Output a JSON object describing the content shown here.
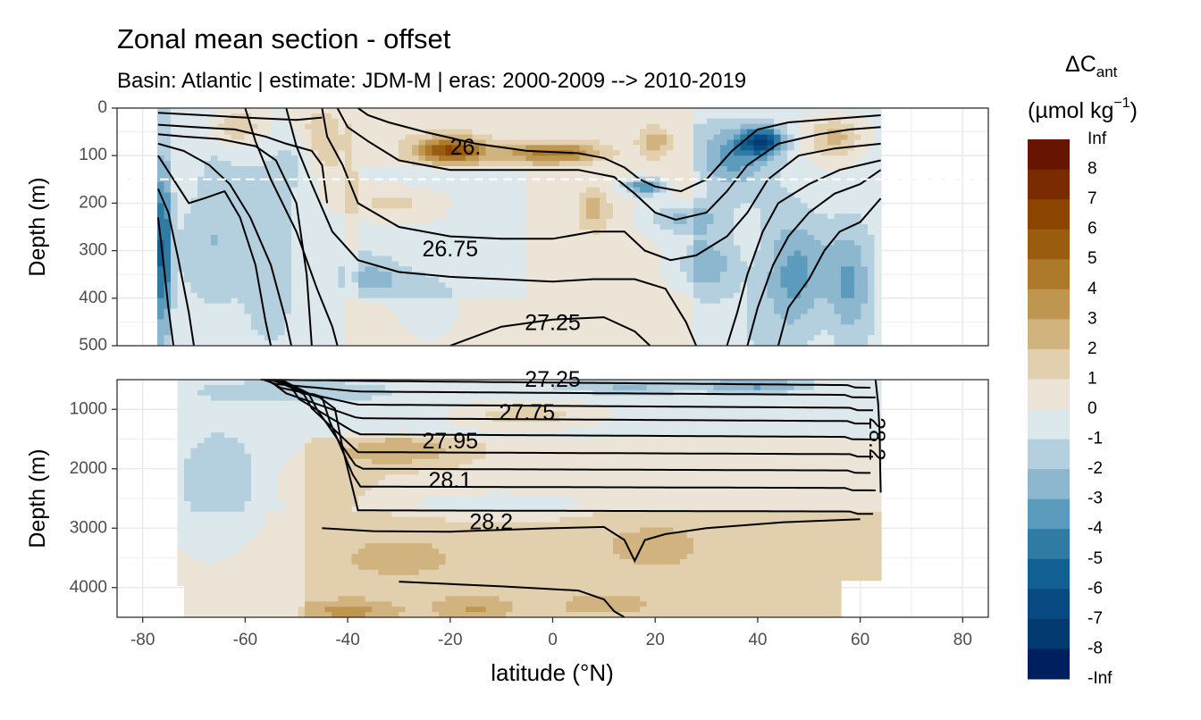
{
  "chart_data": {
    "type": "heatmap",
    "title": "Zonal mean section - offset",
    "subtitle": "Basin: Atlantic | estimate: JDM-M | eras: 2000-2009 --> 2010-2019",
    "xlabel": "latitude (°N)",
    "x_ticks": [
      "-80",
      "-60",
      "-40",
      "-20",
      "0",
      "20",
      "40",
      "60",
      "80"
    ],
    "xlim": [
      -85,
      85
    ],
    "panels": [
      {
        "name": "upper",
        "ylabel": "Depth (m)",
        "ylim": [
          0,
          500
        ],
        "y_ticks": [
          "0",
          "100",
          "200",
          "300",
          "400",
          "500"
        ],
        "reference_line_depth": 150,
        "contour_labels": [
          {
            "text": "26.",
            "lat": -17,
            "depth": 85
          },
          {
            "text": "26.75",
            "lat": -20,
            "depth": 300
          },
          {
            "text": "27.25",
            "lat": 0,
            "depth": 455
          }
        ]
      },
      {
        "name": "lower",
        "ylabel": "Depth (m)",
        "ylim": [
          500,
          4500
        ],
        "y_ticks": [
          "1000",
          "2000",
          "3000",
          "4000"
        ],
        "contour_labels": [
          {
            "text": "27.25",
            "lat": 0,
            "depth": 520
          },
          {
            "text": "27.75",
            "lat": -5,
            "depth": 1080
          },
          {
            "text": "27.95",
            "lat": -20,
            "depth": 1560
          },
          {
            "text": "28.1",
            "lat": -20,
            "depth": 2220
          },
          {
            "text": "28.2",
            "lat": -12,
            "depth": 2920
          },
          {
            "text": "28.2",
            "lat": 63,
            "depth": 1500
          }
        ]
      }
    ],
    "colorbar": {
      "title_main": "ΔC",
      "title_sub": "ant",
      "units_main": "(µmol kg",
      "units_sup": "−1",
      "units_close": ")",
      "labels": [
        "Inf",
        "8",
        "7",
        "6",
        "5",
        "4",
        "3",
        "2",
        "1",
        "0",
        "-1",
        "-2",
        "-3",
        "-4",
        "-5",
        "-6",
        "-7",
        "-8",
        "-Inf"
      ],
      "colors": [
        "#671500",
        "#7a2c00",
        "#8b4500",
        "#9a5d0f",
        "#ad7a2c",
        "#bf964f",
        "#d0b37e",
        "#e1cfae",
        "#ece5d7",
        "#dde8ec",
        "#b4d0df",
        "#8cb7cf",
        "#5b9bbc",
        "#2f7ba4",
        "#125f91",
        "#064a81",
        "#033a70",
        "#001f5f"
      ]
    },
    "isopycnal_levels": [
      26,
      26.25,
      26.5,
      26.75,
      27,
      27.25,
      27.5,
      27.75,
      27.85,
      27.95,
      28,
      28.05,
      28.1,
      28.15,
      28.2
    ],
    "grid": true
  }
}
